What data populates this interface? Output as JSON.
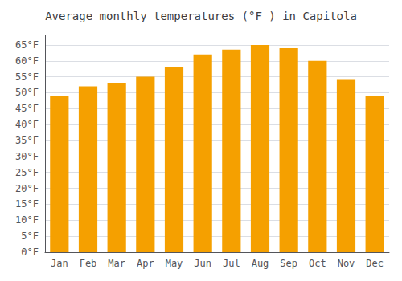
{
  "chart_data": {
    "type": "bar",
    "title": "Average monthly temperatures (°F ) in Capitola",
    "categories": [
      "Jan",
      "Feb",
      "Mar",
      "Apr",
      "May",
      "Jun",
      "Jul",
      "Aug",
      "Sep",
      "Oct",
      "Nov",
      "Dec"
    ],
    "values": [
      49,
      52,
      53,
      55,
      58,
      62,
      63.5,
      65,
      64,
      60,
      54,
      49
    ],
    "color": "#F5A000",
    "ylim": [
      0,
      68
    ],
    "yticks": [
      {
        "value": 0,
        "label": "0°F"
      },
      {
        "value": 5,
        "label": "5°F"
      },
      {
        "value": 10,
        "label": "10°F"
      },
      {
        "value": 15,
        "label": "15°F"
      },
      {
        "value": 20,
        "label": "20°F"
      },
      {
        "value": 25,
        "label": "25°F"
      },
      {
        "value": 30,
        "label": "30°F"
      },
      {
        "value": 35,
        "label": "35°F"
      },
      {
        "value": 40,
        "label": "40°F"
      },
      {
        "value": 45,
        "label": "45°F"
      },
      {
        "value": 50,
        "label": "50°F"
      },
      {
        "value": 55,
        "label": "55°F"
      },
      {
        "value": 60,
        "label": "60°F"
      },
      {
        "value": 65,
        "label": "65°F"
      }
    ],
    "grid": true
  }
}
